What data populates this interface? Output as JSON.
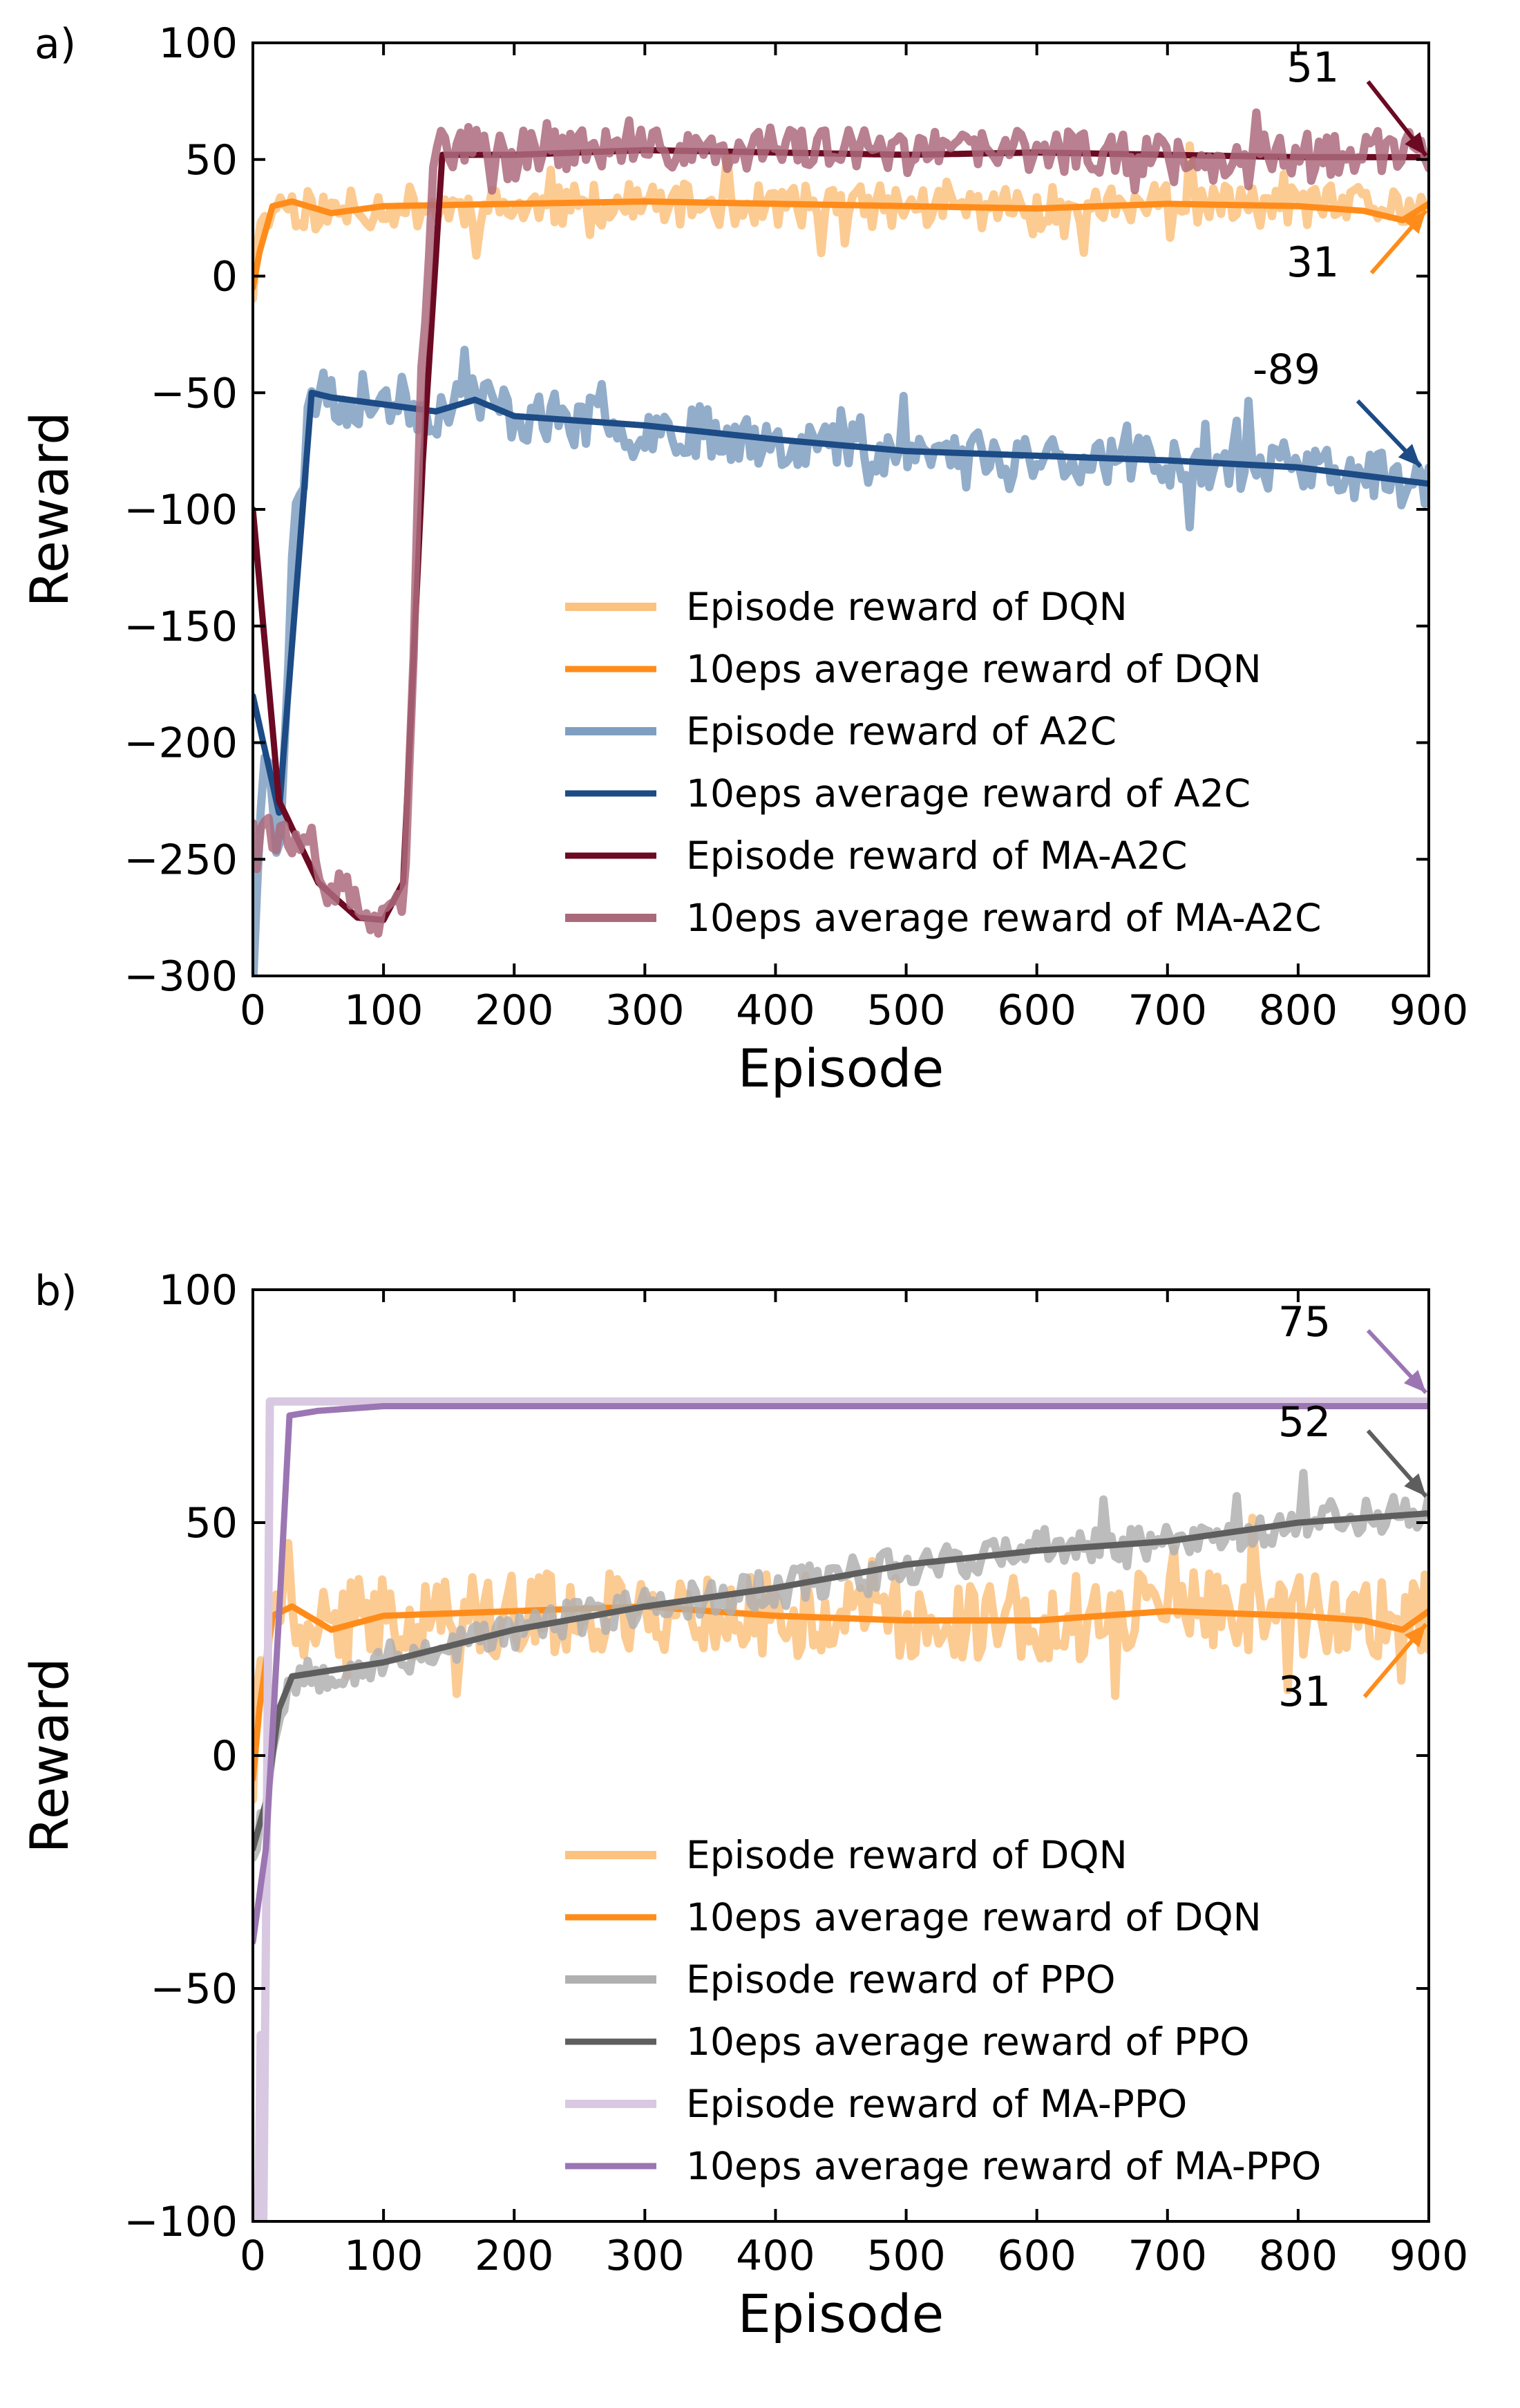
{
  "chart_data": [
    {
      "type": "line",
      "panel_label": "a)",
      "xlabel": "Episode",
      "ylabel": "Reward",
      "xlim": [
        0,
        900
      ],
      "ylim": [
        -300,
        100
      ],
      "xticks": [
        0,
        100,
        200,
        300,
        400,
        500,
        600,
        700,
        800,
        900
      ],
      "yticks": [
        100,
        50,
        0,
        -50,
        -100,
        -150,
        -200,
        -250,
        -300
      ],
      "xtick_labels": [
        "0",
        "100",
        "200",
        "300",
        "400",
        "500",
        "600",
        "700",
        "800",
        "900"
      ],
      "ytick_labels": [
        "100",
        "50",
        "0",
        "−50",
        "−100",
        "−150",
        "−200",
        "−250",
        "−300"
      ],
      "grid": false,
      "legend_position": "lower-right",
      "series": [
        {
          "name": "Episode reward of DQN",
          "color": "#fcc27f",
          "width": 12,
          "noise": 9,
          "seed": 11,
          "x": [
            0,
            5,
            15,
            30,
            60,
            100,
            200,
            300,
            400,
            500,
            600,
            700,
            800,
            900
          ],
          "values": [
            -5,
            15,
            32,
            30,
            27,
            30,
            29,
            31,
            30,
            30,
            29,
            31,
            30,
            30
          ]
        },
        {
          "name": "10eps average reward of DQN",
          "color": "#ff8c1a",
          "width": 9,
          "noise": 0,
          "seed": 0,
          "x": [
            0,
            5,
            15,
            30,
            60,
            100,
            200,
            300,
            400,
            500,
            600,
            700,
            800,
            850,
            880,
            900
          ],
          "values": [
            -5,
            10,
            30,
            32,
            27,
            30,
            31,
            32,
            31,
            30,
            29,
            31,
            30,
            28,
            24,
            31
          ]
        },
        {
          "name": "Episode reward of A2C",
          "color": "#7f9fc1",
          "width": 12,
          "noise": 11,
          "seed": 23,
          "x": [
            0,
            10,
            20,
            30,
            45,
            60,
            100,
            140,
            170,
            200,
            300,
            400,
            500,
            600,
            700,
            800,
            900
          ],
          "values": [
            -300,
            -190,
            -250,
            -120,
            -50,
            -55,
            -52,
            -58,
            -50,
            -60,
            -64,
            -70,
            -75,
            -77,
            -79,
            -82,
            -89
          ]
        },
        {
          "name": "10eps average reward of A2C",
          "color": "#1c4b85",
          "width": 9,
          "noise": 0,
          "seed": 0,
          "x": [
            0,
            20,
            45,
            60,
            100,
            140,
            170,
            200,
            300,
            400,
            500,
            600,
            700,
            800,
            900
          ],
          "values": [
            -180,
            -230,
            -50,
            -52,
            -55,
            -58,
            -53,
            -60,
            -64,
            -70,
            -75,
            -77,
            -79,
            -82,
            -89
          ]
        },
        {
          "name": "Episode reward of MA-A2C",
          "color": "#6b0a22",
          "width": 9,
          "noise": 0,
          "seed": 0,
          "x": [
            0,
            20,
            50,
            80,
            100,
            115,
            130,
            145,
            200,
            300,
            400,
            500,
            600,
            700,
            800,
            900
          ],
          "values": [
            -100,
            -225,
            -260,
            -275,
            -276,
            -260,
            -80,
            52,
            52,
            54,
            53,
            52,
            53,
            52,
            51,
            51
          ]
        },
        {
          "name": "10eps average reward of MA-A2C",
          "color": "#ab6a7c",
          "width": 12,
          "noise": 9,
          "seed": 37,
          "x": [
            0,
            20,
            50,
            80,
            100,
            115,
            122,
            130,
            140,
            200,
            300,
            400,
            500,
            600,
            700,
            800,
            900
          ],
          "values": [
            -230,
            -240,
            -255,
            -270,
            -280,
            -270,
            -180,
            -20,
            55,
            55,
            54,
            55,
            53,
            54,
            52,
            52,
            53
          ]
        }
      ],
      "annotations": [
        {
          "text": "51",
          "series": "Episode reward of MA-A2C"
        },
        {
          "text": "31",
          "series": "10eps average reward of DQN"
        },
        {
          "text": "-89",
          "series": "10eps average reward of A2C"
        }
      ]
    },
    {
      "type": "line",
      "panel_label": "b)",
      "xlabel": "Episode",
      "ylabel": "Reward",
      "xlim": [
        0,
        900
      ],
      "ylim": [
        -100,
        100
      ],
      "xticks": [
        0,
        100,
        200,
        300,
        400,
        500,
        600,
        700,
        800,
        900
      ],
      "yticks": [
        100,
        50,
        0,
        -50,
        -100
      ],
      "xtick_labels": [
        "0",
        "100",
        "200",
        "300",
        "400",
        "500",
        "600",
        "700",
        "800",
        "900"
      ],
      "ytick_labels": [
        "100",
        "50",
        "0",
        "−50",
        "−100"
      ],
      "grid": false,
      "legend_position": "lower-right",
      "series": [
        {
          "name": "Episode reward of DQN",
          "color": "#fcc27f",
          "width": 12,
          "noise": 9,
          "seed": 41,
          "x": [
            0,
            5,
            15,
            30,
            60,
            100,
            200,
            300,
            400,
            500,
            600,
            700,
            800,
            900
          ],
          "values": [
            -5,
            15,
            32,
            30,
            28,
            30,
            30,
            31,
            30,
            30,
            29,
            31,
            30,
            30
          ]
        },
        {
          "name": "10eps average reward of DQN",
          "color": "#ff8c1a",
          "width": 9,
          "noise": 0,
          "seed": 0,
          "x": [
            0,
            5,
            15,
            30,
            60,
            100,
            200,
            300,
            400,
            500,
            600,
            700,
            800,
            850,
            880,
            900
          ],
          "values": [
            -5,
            10,
            30,
            32,
            27,
            30,
            31,
            32,
            30,
            29,
            29,
            31,
            30,
            29,
            27,
            31
          ]
        },
        {
          "name": "Episode reward of PPO",
          "color": "#b0b0b0",
          "width": 12,
          "noise": 4,
          "seed": 53,
          "x": [
            0,
            10,
            20,
            30,
            100,
            200,
            300,
            400,
            500,
            600,
            700,
            800,
            900
          ],
          "values": [
            -20,
            -10,
            10,
            17,
            20,
            27,
            32,
            36,
            41,
            44,
            46,
            50,
            53
          ]
        },
        {
          "name": "10eps average reward of PPO",
          "color": "#5e5e5e",
          "width": 9,
          "noise": 0,
          "seed": 0,
          "x": [
            0,
            10,
            20,
            30,
            100,
            200,
            300,
            400,
            500,
            600,
            700,
            800,
            900
          ],
          "values": [
            -20,
            -10,
            10,
            17,
            20,
            27,
            32,
            36,
            41,
            44,
            46,
            50,
            52
          ]
        },
        {
          "name": "Episode reward of MA-PPO",
          "color": "#d9c8e1",
          "width": 12,
          "noise": 0,
          "seed": 0,
          "x": [
            0,
            4,
            6,
            8,
            10,
            13,
            20,
            100,
            200,
            300,
            400,
            500,
            600,
            700,
            800,
            900
          ],
          "values": [
            -100,
            -100,
            -60,
            -100,
            -40,
            76,
            76,
            76,
            76,
            76,
            76,
            76,
            76,
            76,
            76,
            76
          ]
        },
        {
          "name": "10eps average reward of MA-PPO",
          "color": "#9b76b3",
          "width": 9,
          "noise": 0,
          "seed": 0,
          "x": [
            0,
            10,
            20,
            28,
            50,
            100,
            200,
            300,
            400,
            500,
            600,
            700,
            800,
            900
          ],
          "values": [
            -40,
            -20,
            30,
            73,
            74,
            75,
            75,
            75,
            75,
            75,
            75,
            75,
            75,
            75
          ]
        }
      ],
      "annotations": [
        {
          "text": "75",
          "series": "10eps average reward of MA-PPO"
        },
        {
          "text": "52",
          "series": "10eps average reward of PPO"
        },
        {
          "text": "31",
          "series": "10eps average reward of DQN"
        }
      ]
    }
  ]
}
